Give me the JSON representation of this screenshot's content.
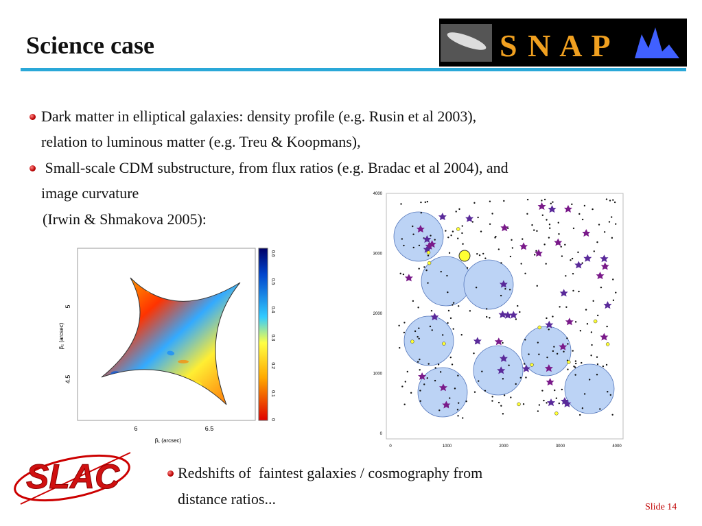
{
  "header": {
    "title": "Science case",
    "logo": "S N A P"
  },
  "bullets": [
    {
      "lines": [
        "Dark matter in elliptical galaxies: density profile (e.g. Rusin et al 2003),",
        "relation to luminous matter (e.g. Treu & Koopmans),"
      ]
    },
    {
      "lines": [
        " Small-scale CDM substructure, from flux ratios (e.g. Bradac et al 2004), and",
        "image curvature",
        "(Irwin & Shmakova 2005):"
      ]
    },
    {
      "lines": [
        "Redshifts of  faintest galaxies / cosmography from",
        "distance ratios..."
      ]
    }
  ],
  "figures": {
    "caustic": {
      "x_label": "β₁ (arcsec)",
      "y_label": "β₂ (arcsec)",
      "x_ticks": [
        "6",
        "6.5"
      ],
      "y_ticks": [
        "5",
        "4.5"
      ],
      "colorbar_ticks": [
        "0",
        "0.1",
        "0.2",
        "0.3",
        "0.4",
        "0.5",
        "0.6"
      ]
    },
    "field": {
      "x_ticks": [
        "0",
        "1000",
        "2000",
        "3000",
        "4000"
      ],
      "y_ticks": [
        "0",
        "1000",
        "2000",
        "3000",
        "4000"
      ]
    }
  },
  "logo": "SLAC",
  "footer": {
    "slide": "Slide 14"
  }
}
